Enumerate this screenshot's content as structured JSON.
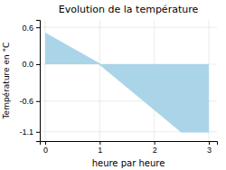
{
  "chart_data": {
    "type": "area",
    "title": "Evolution de la température",
    "x_label": "heure par heure",
    "y_label": "Température en °C",
    "x": [
      0,
      1,
      2.5,
      3
    ],
    "values": [
      0.5,
      0.0,
      -1.1,
      -1.1
    ],
    "color": "#aad4e8",
    "xlim": [
      -0.1,
      3.15
    ],
    "xticks": [
      0,
      1,
      2,
      3
    ],
    "ylim": [
      -1.25,
      0.72
    ],
    "yticks": [
      -1.1,
      -0.6,
      {
        "value": 0.0,
        "label": "0.0"
      },
      0.6
    ],
    "grid": true
  }
}
